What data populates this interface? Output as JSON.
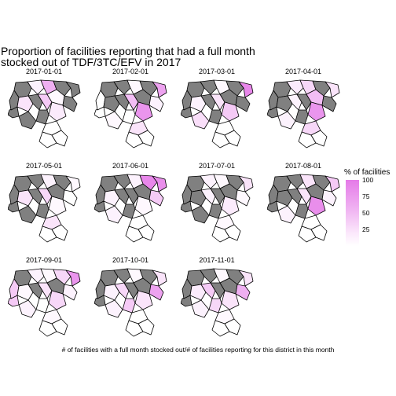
{
  "title": "Proportion of facilities reporting that had a full month\nstocked out of TDF/3TC/EFV in 2017",
  "panels": [
    {
      "label": "2017-01-01",
      "values": [
        null,
        10,
        60,
        null,
        null,
        null,
        20,
        null,
        40,
        5,
        null,
        15,
        null,
        null,
        0,
        0,
        0
      ]
    },
    {
      "label": "2017-02-01",
      "values": [
        null,
        null,
        5,
        null,
        70,
        0,
        null,
        null,
        50,
        null,
        10,
        80,
        0,
        5,
        20,
        0,
        0
      ]
    },
    {
      "label": "2017-03-01",
      "values": [
        null,
        null,
        5,
        null,
        90,
        null,
        10,
        null,
        20,
        null,
        null,
        40,
        null,
        25,
        0,
        0,
        0
      ]
    },
    {
      "label": "2017-04-01",
      "values": [
        null,
        15,
        30,
        null,
        20,
        null,
        null,
        10,
        null,
        50,
        null,
        80,
        null,
        10,
        30,
        0,
        0
      ]
    },
    {
      "label": "2017-05-01",
      "values": [
        null,
        null,
        10,
        null,
        5,
        null,
        20,
        null,
        30,
        null,
        0,
        5,
        null,
        null,
        20,
        0,
        0
      ]
    },
    {
      "label": "2017-06-01",
      "values": [
        null,
        null,
        10,
        90,
        85,
        null,
        10,
        null,
        null,
        null,
        40,
        5,
        null,
        10,
        0,
        0,
        0
      ]
    },
    {
      "label": "2017-07-01",
      "values": [
        null,
        10,
        5,
        null,
        20,
        null,
        null,
        10,
        null,
        null,
        5,
        15,
        null,
        null,
        5,
        0,
        0
      ]
    },
    {
      "label": "2017-08-01",
      "values": [
        null,
        null,
        20,
        null,
        40,
        null,
        null,
        null,
        20,
        null,
        10,
        85,
        null,
        10,
        0,
        0,
        0
      ]
    },
    {
      "label": "2017-09-01",
      "values": [
        null,
        10,
        5,
        30,
        80,
        40,
        5,
        null,
        20,
        null,
        10,
        30,
        0,
        10,
        5,
        0,
        0
      ]
    },
    {
      "label": "2017-10-01",
      "values": [
        null,
        null,
        5,
        null,
        20,
        null,
        10,
        30,
        null,
        null,
        70,
        20,
        40,
        10,
        0,
        0,
        0
      ]
    },
    {
      "label": "2017-11-01",
      "values": [
        null,
        null,
        5,
        null,
        20,
        null,
        15,
        40,
        null,
        null,
        60,
        20,
        30,
        10,
        5,
        0,
        0
      ]
    }
  ],
  "legend": {
    "title": "% of facilities",
    "ticks": [
      100,
      75,
      50,
      25
    ],
    "range": [
      0,
      100
    ],
    "low_color": "#ffffff",
    "high_color": "#e57ae8",
    "missing_color": "#808080"
  },
  "caption": "# of facilities with a full month stocked out/# of facilities reporting for this district in this month"
}
